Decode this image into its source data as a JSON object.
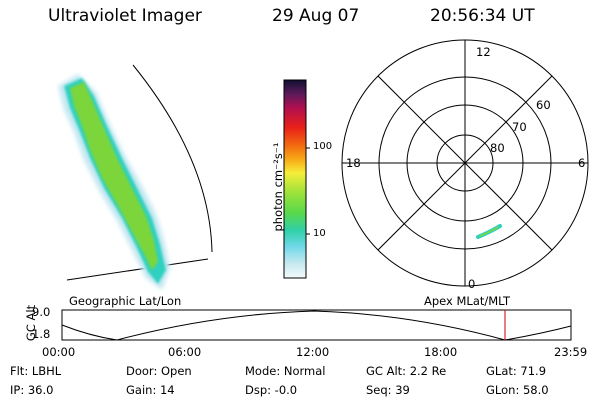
{
  "header": {
    "instrument": "Ultraviolet Imager",
    "date": "29 Aug 07",
    "time": "20:56:34 UT"
  },
  "image_panel": {
    "left_label": "Geographic Lat/Lon",
    "right_label": "Apex MLat/MLT"
  },
  "colorbar": {
    "label": "photon cm⁻²s⁻¹",
    "ticks": [
      "100",
      "10"
    ],
    "scale": "log"
  },
  "polar_plot": {
    "mlt_labels": {
      "top": "12",
      "left": "18",
      "right": "6",
      "bottom": "0"
    },
    "mlat_labels": [
      "60",
      "70",
      "80"
    ]
  },
  "altitude_strip": {
    "title": "GC Alt",
    "y_ticks": [
      "9.0",
      "1.8"
    ],
    "x_ticks": [
      "00:00",
      "06:00",
      "12:00",
      "18:00",
      "23:59"
    ],
    "current_time_marker_color": "#cc0000"
  },
  "metadata": {
    "filter": "Flt: LBHL",
    "door": "Door: Open",
    "mode": "Mode: Normal",
    "gc_alt": "GC Alt: 2.2 Re",
    "glat": "GLat:  71.9",
    "ip": "IP: 36.0",
    "gain": "Gain: 14",
    "dsp": "Dsp:  -0.0",
    "seq": "Seq: 39",
    "glon": "GLon:  58.0"
  },
  "colors": {
    "aurora_core": "#7cd63a",
    "aurora_edge": "#2fd0c0",
    "aurora_halo": "#c4e8f2",
    "time_marker": "#cc0000"
  }
}
